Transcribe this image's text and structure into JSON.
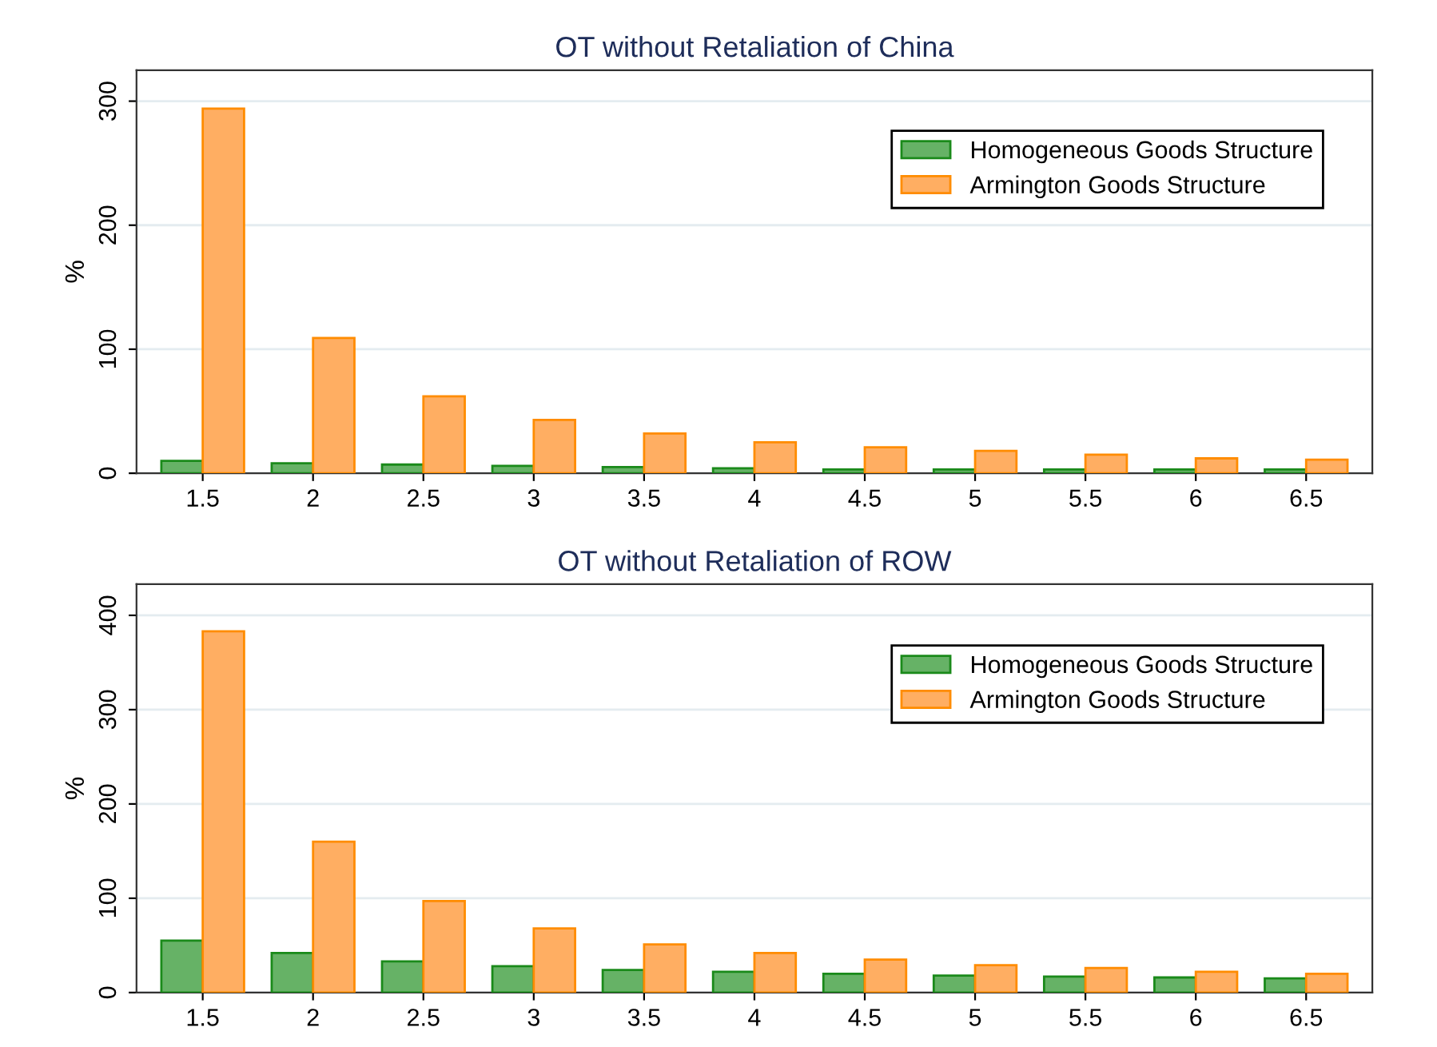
{
  "chart_data": [
    {
      "type": "bar",
      "title": "OT without Retaliation of China",
      "ylabel": "%",
      "categories": [
        "1.5",
        "2",
        "2.5",
        "3",
        "3.5",
        "4",
        "4.5",
        "5",
        "5.5",
        "6",
        "6.5"
      ],
      "series": [
        {
          "name": "Homogeneous Goods Structure",
          "color": "#66b266",
          "values": [
            10,
            8,
            7,
            6,
            5,
            4,
            3,
            3,
            3,
            3,
            3
          ]
        },
        {
          "name": "Armington Goods Structure",
          "color": "#ffae62",
          "values": [
            294,
            109,
            62,
            43,
            32,
            25,
            21,
            18,
            15,
            12,
            11
          ]
        }
      ],
      "ylim": [
        0,
        325
      ],
      "yticks": [
        0,
        100,
        200,
        300
      ],
      "grid": "y",
      "legend": "top right"
    },
    {
      "type": "bar",
      "title": "OT without Retaliation of ROW",
      "ylabel": "%",
      "categories": [
        "1.5",
        "2",
        "2.5",
        "3",
        "3.5",
        "4",
        "4.5",
        "5",
        "5.5",
        "6",
        "6.5"
      ],
      "series": [
        {
          "name": "Homogeneous Goods Structure",
          "color": "#66b266",
          "values": [
            55,
            42,
            33,
            28,
            24,
            22,
            20,
            18,
            17,
            16,
            15
          ]
        },
        {
          "name": "Armington Goods Structure",
          "color": "#ffae62",
          "values": [
            383,
            160,
            97,
            68,
            51,
            42,
            35,
            29,
            26,
            22,
            20
          ]
        }
      ],
      "ylim": [
        0,
        433
      ],
      "yticks": [
        0,
        100,
        200,
        300,
        400
      ],
      "grid": "y",
      "legend": "top right"
    }
  ]
}
